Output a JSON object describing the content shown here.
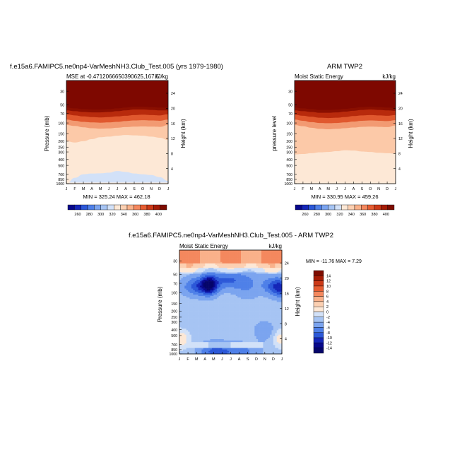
{
  "chart_data": [
    {
      "type": "heatmap",
      "title": "f.e15a6.FAMIPC5.ne0np4-VarMeshNH3.Club_Test.005 (yrs 1979-1980)",
      "subtitle_left": "MSE at -0.4712066650390625,167.5",
      "subtitle_right": "kJ/kg",
      "ylabel": "Pressure (mb)",
      "ylabel_right": "Height (km)",
      "stats": "MIN = 325.24  MAX = 462.18",
      "months": [
        "J",
        "F",
        "M",
        "A",
        "M",
        "J",
        "J",
        "A",
        "S",
        "O",
        "N",
        "D",
        "J"
      ],
      "pressure_ticks": [
        "30",
        "50",
        "70",
        "100",
        "150",
        "200",
        "250",
        "300",
        "400",
        "500",
        "700",
        "850",
        "1000"
      ],
      "height_ticks": [
        "24",
        "20",
        "16",
        "12",
        "8",
        "4"
      ],
      "value_range": [
        325.24,
        462.18
      ],
      "isolines": [
        {
          "value": 420,
          "levels_mb": [
            62,
            64,
            66,
            67,
            67,
            66,
            64,
            62,
            60,
            60,
            61,
            62,
            62
          ]
        },
        {
          "value": 400,
          "levels_mb": [
            72,
            75,
            78,
            80,
            81,
            80,
            78,
            76,
            74,
            73,
            74,
            75,
            72
          ]
        },
        {
          "value": 380,
          "levels_mb": [
            88,
            92,
            96,
            98,
            99,
            98,
            96,
            93,
            91,
            90,
            91,
            92,
            88
          ]
        },
        {
          "value": 360,
          "levels_mb": [
            108,
            112,
            118,
            122,
            124,
            123,
            120,
            117,
            115,
            114,
            115,
            116,
            108
          ]
        },
        {
          "value": 345,
          "levels_mb": [
            200,
            210,
            200,
            185,
            172,
            168,
            162,
            158,
            160,
            162,
            168,
            175,
            190
          ]
        },
        {
          "value": 335,
          "levels_mb": [
            1000,
            800,
            700,
            680,
            675,
            660,
            620,
            640,
            680,
            700,
            720,
            780,
            900
          ]
        }
      ],
      "colorbar": {
        "labels": [
          "260",
          "280",
          "300",
          "320",
          "340",
          "360",
          "380",
          "400"
        ],
        "colors": [
          "#08088c",
          "#1526b8",
          "#2c58d8",
          "#4f80e8",
          "#7ba4ef",
          "#a6c4f3",
          "#d2e1f8",
          "#fde8d6",
          "#fcd0b2",
          "#f9b18a",
          "#f4885e",
          "#e65d32",
          "#cc3a18",
          "#a51c06",
          "#7e0c00"
        ]
      }
    },
    {
      "type": "heatmap",
      "title": "ARM TWP2",
      "subtitle_left": "Moist Static Energy",
      "subtitle_right": "kJ/kg",
      "ylabel": "pressure level",
      "ylabel_right": "Height (km)",
      "stats": "MIN = 330.95  MAX = 459.26",
      "months": [
        "J",
        "F",
        "M",
        "A",
        "M",
        "J",
        "J",
        "A",
        "S",
        "O",
        "N",
        "D",
        "J"
      ],
      "pressure_ticks": [
        "30",
        "50",
        "70",
        "100",
        "150",
        "200",
        "250",
        "300",
        "400",
        "500",
        "700",
        "850",
        "1000"
      ],
      "height_ticks": [
        "24",
        "20",
        "16",
        "12",
        "8",
        "4"
      ],
      "value_range": [
        330.95,
        459.26
      ],
      "isolines": [
        {
          "value": 420,
          "levels_mb": [
            62,
            64,
            66,
            68,
            68,
            67,
            65,
            63,
            61,
            60,
            61,
            62,
            63
          ]
        },
        {
          "value": 400,
          "levels_mb": [
            73,
            76,
            79,
            82,
            83,
            82,
            80,
            77,
            75,
            74,
            75,
            76,
            74
          ]
        },
        {
          "value": 380,
          "levels_mb": [
            88,
            92,
            97,
            100,
            101,
            100,
            98,
            95,
            92,
            91,
            92,
            93,
            90
          ]
        },
        {
          "value": 360,
          "levels_mb": [
            108,
            113,
            120,
            125,
            127,
            125,
            122,
            119,
            116,
            115,
            116,
            117,
            110
          ]
        },
        {
          "value": 345,
          "levels_mb": [
            330,
            325,
            315,
            305,
            300,
            292,
            282,
            285,
            295,
            300,
            310,
            315,
            320
          ]
        }
      ],
      "colorbar": {
        "labels": [
          "260",
          "280",
          "300",
          "320",
          "340",
          "360",
          "380",
          "400"
        ],
        "colors": [
          "#08088c",
          "#1526b8",
          "#2c58d8",
          "#4f80e8",
          "#7ba4ef",
          "#a6c4f3",
          "#d2e1f8",
          "#fde8d6",
          "#fcd0b2",
          "#f9b18a",
          "#f4885e",
          "#e65d32",
          "#cc3a18",
          "#a51c06",
          "#7e0c00"
        ]
      }
    },
    {
      "type": "heatmap",
      "title": "f.e15a6.FAMIPC5.ne0np4-VarMeshNH3.Club_Test.005 - ARM TWP2",
      "subtitle_left": "Moist Static Energy",
      "subtitle_right": "kJ/kg",
      "ylabel": "Pressure (mb)",
      "ylabel_right": "Height (km)",
      "stats": "MIN = -11.76  MAX =   7.29",
      "months": [
        "J",
        "F",
        "M",
        "A",
        "M",
        "J",
        "J",
        "A",
        "S",
        "O",
        "N",
        "D",
        "J"
      ],
      "pressure_ticks": [
        "30",
        "50",
        "70",
        "100",
        "150",
        "200",
        "250",
        "300",
        "400",
        "500",
        "700",
        "850",
        "1000"
      ],
      "height_ticks": [
        "24",
        "20",
        "16",
        "12",
        "8",
        "4"
      ],
      "value_range": [
        -11.76,
        7.29
      ],
      "base_value": -3,
      "blobs": [
        {
          "month": 2.3,
          "level_mb": 80,
          "value": -9,
          "radius": 1.9
        },
        {
          "month": 3.5,
          "level_mb": 75,
          "value": -11,
          "radius": 0.9
        },
        {
          "month": 6.0,
          "level_mb": 62,
          "value": -8,
          "radius": 3.0
        },
        {
          "month": 11.2,
          "level_mb": 78,
          "value": -9,
          "radius": 1.4
        },
        {
          "month": 12.0,
          "level_mb": 90,
          "value": -7,
          "radius": 0.9
        },
        {
          "month": 8.0,
          "level_mb": 95,
          "value": -5,
          "radius": 1.5
        },
        {
          "month": 4.0,
          "level_mb": 920,
          "value": -8,
          "radius": 1.8
        },
        {
          "month": 7.0,
          "level_mb": 940,
          "value": -7,
          "radius": 2.4
        },
        {
          "month": 0.2,
          "level_mb": 570,
          "value": 2,
          "radius": 1.0
        },
        {
          "month": 11.8,
          "level_mb": 560,
          "value": 1,
          "radius": 0.9
        },
        {
          "month": 10.0,
          "level_mb": 420,
          "value": -6,
          "radius": 1.2
        },
        {
          "month": 1.5,
          "level_mb": 280,
          "value": -4,
          "radius": 1.5
        }
      ],
      "top_band": [
        {
          "level_mb": 30,
          "value": 6
        },
        {
          "level_mb": 36,
          "value": 3
        },
        {
          "level_mb": 42,
          "value": 0
        },
        {
          "level_mb": 48,
          "value": -2
        }
      ],
      "colorbar": {
        "labels": [
          "14",
          "12",
          "10",
          "8",
          "6",
          "4",
          "2",
          "0",
          "-2",
          "-4",
          "-6",
          "-8",
          "-10",
          "-12",
          "-14"
        ],
        "colors": [
          "#7e0c00",
          "#a51c06",
          "#cc3a18",
          "#e65d32",
          "#f4885e",
          "#f9b18a",
          "#fcd0b2",
          "#fde8d6",
          "#d2e1f8",
          "#a6c4f3",
          "#7ba4ef",
          "#4f80e8",
          "#2c58d8",
          "#1526b8",
          "#08088c",
          "#05056a"
        ]
      }
    }
  ]
}
